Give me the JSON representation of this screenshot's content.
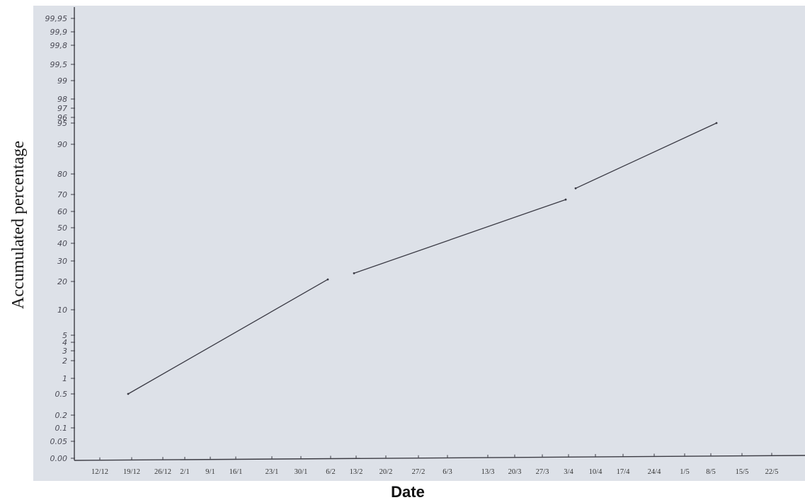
{
  "chart_data": {
    "type": "line",
    "title": "",
    "xlabel": "Date",
    "ylabel": "Accumulated percentage",
    "y_scale": "probability",
    "grid": false,
    "legend": "none",
    "x_categories": [
      "12/12",
      "19/12",
      "26/12",
      "2/1",
      "9/1",
      "16/1",
      "23/1",
      "30/1",
      "6/2",
      "13/2",
      "20/2",
      "27/2",
      "6/3",
      "13/3",
      "20/3",
      "27/3",
      "3/4",
      "10/4",
      "17/4",
      "24/4",
      "1/5",
      "8/5",
      "15/5",
      "22/5"
    ],
    "y_ticks": [
      "0.00",
      "0.05",
      "0.1",
      "0.2",
      "0.5",
      "1",
      "2",
      "3",
      "4",
      "5",
      "10",
      "20",
      "30",
      "40",
      "50",
      "60",
      "70",
      "80",
      "90",
      "95",
      "96",
      "97",
      "98",
      "99",
      "99,5",
      "99,8",
      "99,9",
      "99,95"
    ],
    "series": [
      {
        "points": [
          {
            "x": "19/12",
            "y": 0.5
          },
          {
            "x": "6/2",
            "y": 21
          }
        ]
      },
      {
        "points": [
          {
            "x": "13/2",
            "y": 24
          },
          {
            "x": "3/4",
            "y": 67
          }
        ]
      },
      {
        "points": [
          {
            "x": "3/4",
            "y": 73
          },
          {
            "x": "8/5",
            "y": 95
          }
        ]
      }
    ],
    "line_color": "#3a3a44",
    "paper_color": "#dde1e8",
    "axis_color": "#3c3c44",
    "y_tick_color": "#4a4a55"
  }
}
